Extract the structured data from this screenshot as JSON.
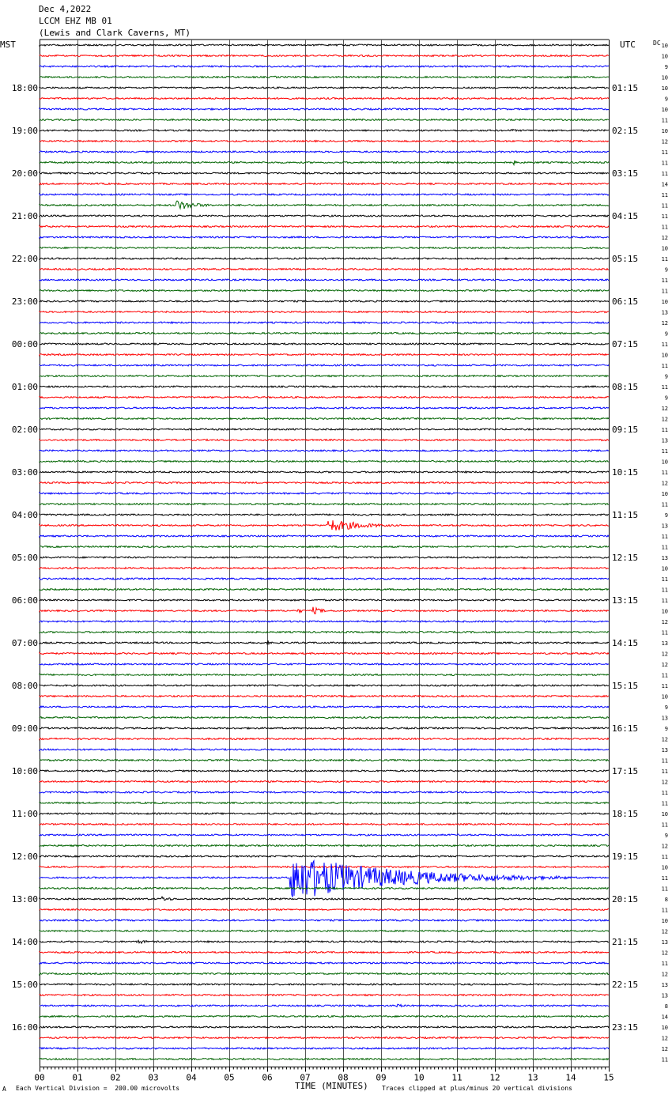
{
  "header": {
    "date": "Dec 4,2022",
    "station": "LCCM EHZ MB 01",
    "location": "(Lewis and Clark Caverns, MT)"
  },
  "left_zone": "MST",
  "right_zone": "UTC",
  "dc_label": "DC",
  "footer": {
    "mark": "A",
    "scale": "Each Vertical Division =  200.00 microvolts",
    "clip": "Traces clipped at plus/minus 20 vertical divisions"
  },
  "colors": {
    "trace_cycle": [
      "#000000",
      "#ff0000",
      "#0000ff",
      "#006400"
    ],
    "grid": "#000000",
    "grid_minor": "#b0b0b0"
  },
  "chart_data": {
    "type": "line",
    "xlabel": "TIME (MINUTES)",
    "x_ticks": [
      "00",
      "01",
      "02",
      "03",
      "04",
      "05",
      "06",
      "07",
      "08",
      "09",
      "10",
      "11",
      "12",
      "13",
      "14",
      "15"
    ],
    "xlim": [
      0,
      15
    ],
    "rows_count": 96,
    "left_hour_labels": [
      "18:00",
      "19:00",
      "20:00",
      "21:00",
      "22:00",
      "23:00",
      "00:00",
      "01:00",
      "02:00",
      "03:00",
      "04:00",
      "05:00",
      "06:00",
      "07:00",
      "08:00",
      "09:00",
      "10:00",
      "11:00",
      "12:00",
      "13:00",
      "14:00",
      "15:00",
      "16:00"
    ],
    "right_hour_labels": [
      "01:15",
      "02:15",
      "03:15",
      "04:15",
      "05:15",
      "06:15",
      "07:15",
      "08:15",
      "09:15",
      "10:15",
      "11:15",
      "12:15",
      "13:15",
      "14:15",
      "15:15",
      "16:15",
      "17:15",
      "18:15",
      "19:15",
      "20:15",
      "21:15",
      "22:15",
      "23:15"
    ],
    "dc_values": [
      "10",
      "10",
      "9",
      "10",
      "10",
      "9",
      "10",
      "11",
      "10",
      "12",
      "11",
      "11",
      "11",
      "14",
      "11",
      "11",
      "11",
      "11",
      "12",
      "10",
      "11",
      "9",
      "11",
      "11",
      "10",
      "13",
      "12",
      "9",
      "11",
      "10",
      "11",
      "9",
      "11",
      "9",
      "12",
      "12",
      "11",
      "13",
      "11",
      "10",
      "11",
      "12",
      "10",
      "11",
      "9",
      "13",
      "11",
      "11",
      "13",
      "10",
      "11",
      "11",
      "11",
      "10",
      "12",
      "11",
      "13",
      "12",
      "12",
      "11",
      "11",
      "10",
      "9",
      "13",
      "9",
      "12",
      "13",
      "11",
      "11",
      "12",
      "11",
      "11",
      "10",
      "11",
      "9",
      "12",
      "11",
      "10",
      "11",
      "11",
      "8",
      "11",
      "10",
      "12",
      "13",
      "12",
      "11",
      "12",
      "13",
      "13",
      "8",
      "14",
      "10",
      "12",
      "12",
      "11"
    ],
    "events": [
      {
        "row": 15,
        "minute": 3.6,
        "amplitude": 7,
        "duration": 1.5
      },
      {
        "row": 8,
        "minute": 12.4,
        "amplitude": 2.5,
        "duration": 0.6
      },
      {
        "row": 11,
        "minute": 12.5,
        "amplitude": 3,
        "duration": 0.4
      },
      {
        "row": 45,
        "minute": 7.6,
        "amplitude": 9,
        "duration": 2.4
      },
      {
        "row": 53,
        "minute": 6.8,
        "amplitude": 3,
        "duration": 0.6
      },
      {
        "row": 53,
        "minute": 7.2,
        "amplitude": 5,
        "duration": 0.8
      },
      {
        "row": 56,
        "minute": 6.0,
        "amplitude": 4,
        "duration": 0.2
      },
      {
        "row": 67,
        "minute": 6.6,
        "amplitude": 2,
        "duration": 0.5
      },
      {
        "row": 74,
        "minute": 10.4,
        "amplitude": 2,
        "duration": 0.5
      },
      {
        "row": 78,
        "minute": 6.6,
        "amplitude": 30,
        "duration": 7.4
      },
      {
        "row": 80,
        "minute": 3.2,
        "amplitude": 3.5,
        "duration": 1.0
      },
      {
        "row": 84,
        "minute": 2.6,
        "amplitude": 3,
        "duration": 0.8
      },
      {
        "row": 90,
        "minute": 9.4,
        "amplitude": 3,
        "duration": 0.6
      },
      {
        "row": 3,
        "minute": 6.2,
        "amplitude": 1.8,
        "duration": 0.4
      },
      {
        "row": 23,
        "minute": 14.2,
        "amplitude": 1.8,
        "duration": 0.4
      }
    ]
  }
}
